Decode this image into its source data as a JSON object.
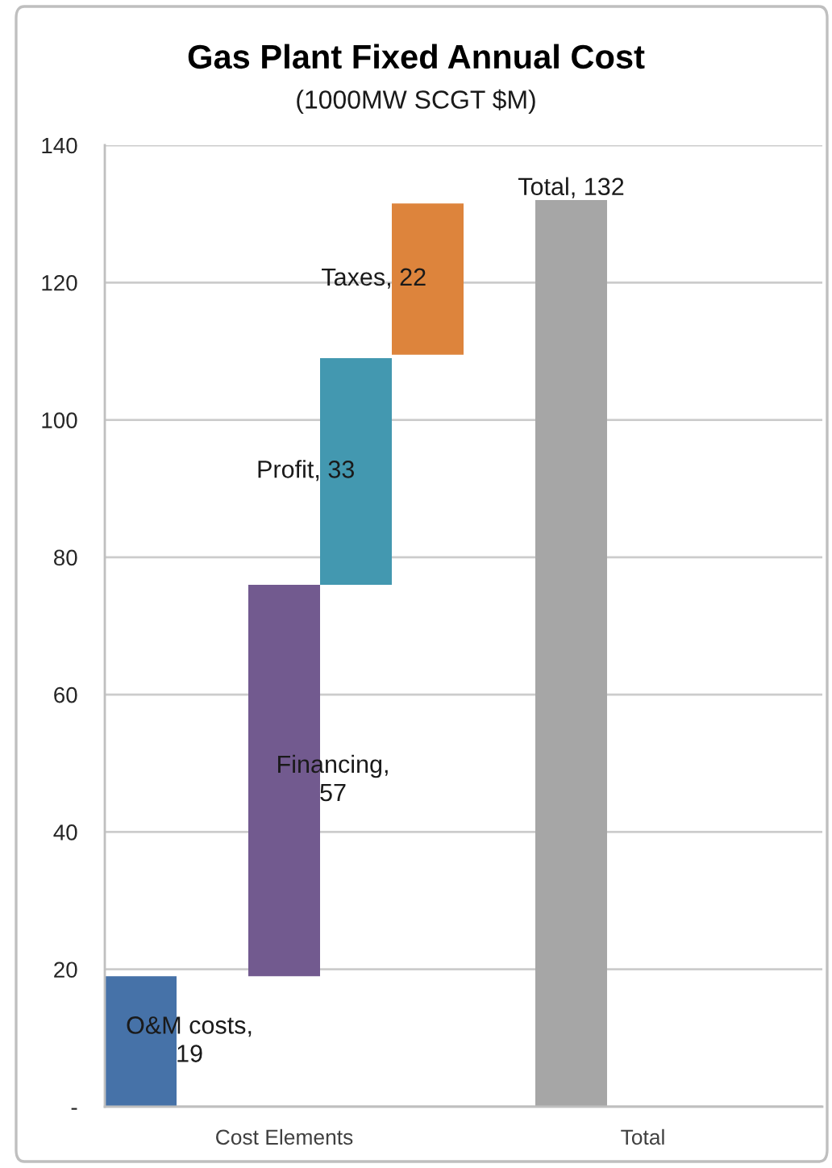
{
  "chart_data": {
    "type": "bar",
    "title": "Gas Plant Fixed Annual Cost",
    "subtitle": "(1000MW SCGT $M)",
    "categories": [
      "Cost Elements",
      "Total"
    ],
    "series": [
      {
        "color": "#4672a8",
        "values": [
          19,
          null
        ],
        "base": [
          0,
          null
        ],
        "value_labels": [
          "O&M costs, 19",
          null
        ]
      },
      {
        "color": "#a6a6a6",
        "values": [
          null,
          132
        ],
        "base": [
          null,
          0
        ],
        "value_labels": [
          null,
          "Total, 132"
        ]
      },
      {
        "color": "#725a8f",
        "values": [
          57,
          null
        ],
        "base": [
          19,
          null
        ],
        "value_labels": [
          "Financing, 57",
          null
        ]
      },
      {
        "color": "#4398b0",
        "values": [
          33,
          null
        ],
        "base": [
          76,
          null
        ],
        "value_labels": [
          "Profit, 33",
          null
        ]
      },
      {
        "color": "#dd843c",
        "values": [
          22,
          null
        ],
        "base": [
          109.5,
          null
        ],
        "value_labels": [
          "Taxes, 22",
          null
        ]
      }
    ],
    "ylim": [
      0,
      140
    ],
    "yticks": [
      {
        "value": 0,
        "label": "-"
      },
      20,
      40,
      60,
      80,
      100,
      120,
      140
    ],
    "grid": "y"
  }
}
